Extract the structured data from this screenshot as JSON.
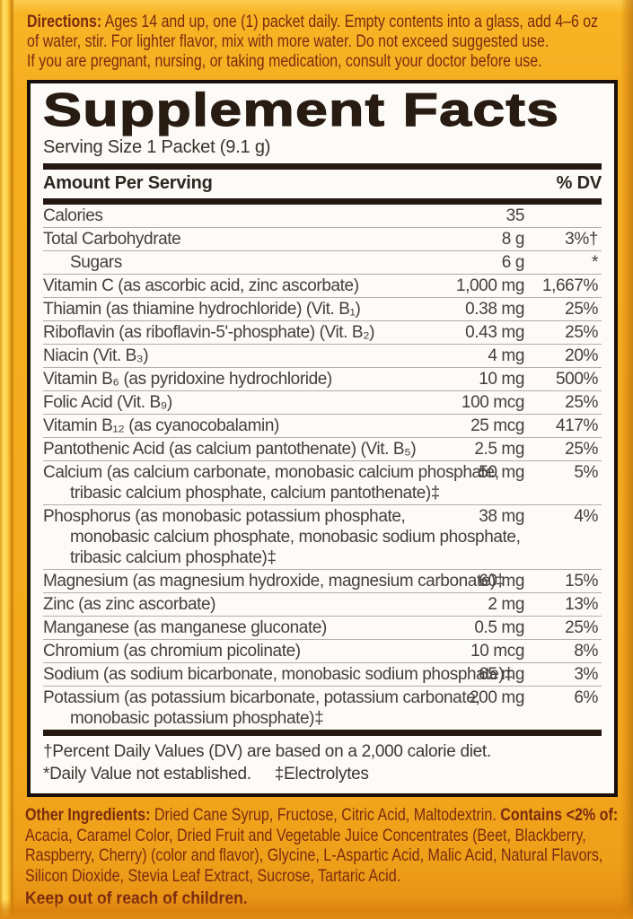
{
  "directions": {
    "label": "Directions:",
    "text": " Ages 14 and up, one (1) packet daily. Empty contents into a glass, add 4–6 oz\nof water, stir. For lighter flavor, mix with more water. Do not exceed suggested use.\nIf you are pregnant, nursing, or taking medication, consult your doctor before use."
  },
  "panel": {
    "title": "Supplement Facts",
    "serving_size": "Serving Size 1 Packet (9.1 g)",
    "header": {
      "amount": "Amount Per Serving",
      "dv": "% DV"
    },
    "rows": [
      {
        "name_lines": [
          "Calories"
        ],
        "amount": "35",
        "dv": ""
      },
      {
        "name_lines": [
          "Total Carbohydrate"
        ],
        "amount": "8 g",
        "dv": "3%†"
      },
      {
        "name_lines": [
          "Sugars"
        ],
        "amount": "6 g",
        "dv": "*",
        "indent": true
      },
      {
        "name_lines": [
          "Vitamin C (as ascorbic acid, zinc ascorbate)"
        ],
        "amount": "1,000 mg",
        "dv": "1,667%"
      },
      {
        "name_lines": [
          "Thiamin (as thiamine hydrochloride) (Vit. B₁)"
        ],
        "amount": "0.38 mg",
        "dv": "25%"
      },
      {
        "name_lines": [
          "Riboflavin (as riboflavin-5'-phosphate) (Vit. B₂)"
        ],
        "amount": "0.43 mg",
        "dv": "25%"
      },
      {
        "name_lines": [
          "Niacin (Vit. B₃)"
        ],
        "amount": "4 mg",
        "dv": "20%"
      },
      {
        "name_lines": [
          "Vitamin B₆ (as pyridoxine hydrochloride)"
        ],
        "amount": "10 mg",
        "dv": "500%"
      },
      {
        "name_lines": [
          "Folic Acid (Vit. B₉)"
        ],
        "amount": "100 mcg",
        "dv": "25%"
      },
      {
        "name_lines": [
          "Vitamin B₁₂ (as cyanocobalamin)"
        ],
        "amount": "25 mcg",
        "dv": "417%"
      },
      {
        "name_lines": [
          "Pantothenic Acid (as calcium pantothenate) (Vit. B₅)"
        ],
        "amount": "2.5 mg",
        "dv": "25%"
      },
      {
        "name_lines": [
          "Calcium (as calcium carbonate, monobasic calcium phosphate,",
          "tribasic calcium phosphate, calcium pantothenate)‡"
        ],
        "amount": "50 mg",
        "dv": "5%"
      },
      {
        "name_lines": [
          "Phosphorus (as monobasic potassium phosphate,",
          "monobasic calcium phosphate, monobasic sodium phosphate,",
          "tribasic calcium phosphate)‡"
        ],
        "amount": "38 mg",
        "dv": "4%"
      },
      {
        "name_lines": [
          "Magnesium (as magnesium hydroxide, magnesium carbonate)‡"
        ],
        "amount": "60 mg",
        "dv": "15%"
      },
      {
        "name_lines": [
          "Zinc (as zinc ascorbate)"
        ],
        "amount": "2 mg",
        "dv": "13%"
      },
      {
        "name_lines": [
          "Manganese (as manganese gluconate)"
        ],
        "amount": "0.5 mg",
        "dv": "25%"
      },
      {
        "name_lines": [
          "Chromium (as chromium picolinate)"
        ],
        "amount": "10 mcg",
        "dv": "8%"
      },
      {
        "name_lines": [
          "Sodium (as sodium bicarbonate, monobasic sodium phosphate)‡"
        ],
        "amount": "65 mg",
        "dv": "3%"
      },
      {
        "name_lines": [
          "Potassium (as potassium bicarbonate, potassium carbonate,",
          "monobasic potassium phosphate)‡"
        ],
        "amount": "200 mg",
        "dv": "6%"
      }
    ],
    "footnotes": {
      "dv_note": "†Percent Daily Values (DV) are based on a 2,000 calorie diet.",
      "not_established": "*Daily Value not established.",
      "electrolytes": "‡Electrolytes"
    }
  },
  "other_ingredients": {
    "label": "Other Ingredients:",
    "text": " Dried Cane Syrup, Fructose, Citric Acid, Maltodextrin. ",
    "contains_label": "Contains <2% of:",
    "contains_text": "\nAcacia, Caramel Color, Dried Fruit and Vegetable Juice Concentrates (Beet, Blackberry,\nRaspberry, Cherry) (color and flavor), Glycine, L-Aspartic Acid, Malic Acid, Natural Flavors,\nSilicon Dioxide, Stevia Leaf Extract, Sucrose, Tartaric Acid."
  },
  "warning": "Keep out of reach of children.",
  "colors": {
    "background_amber": "#F6AE21",
    "edge_yellow": "#FFD44A",
    "maroon_text": "#7B2B10",
    "panel_bg": "#FCFBF7",
    "panel_border": "#1A100B",
    "bar_dark": "#241811",
    "table_text": "#44403B",
    "hairline": "#B3AEA7",
    "bottom_shade": "#DE8A12"
  }
}
